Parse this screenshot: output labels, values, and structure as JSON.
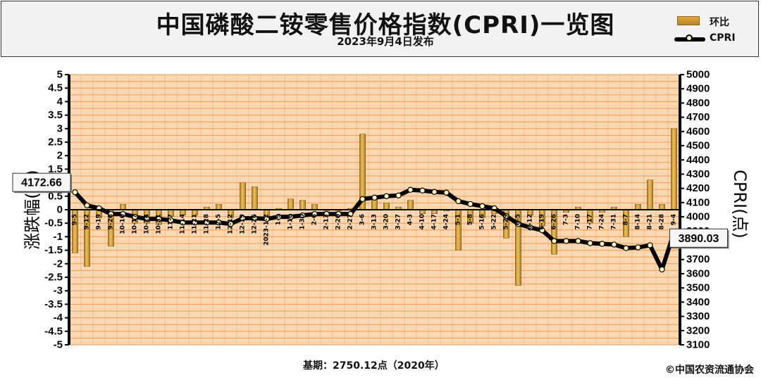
{
  "header": {
    "title": "中国磷酸二铵零售价格指数(CPRI)一览图",
    "subtitle": "2023年9月4日发布"
  },
  "legend": {
    "bar_label": "环比",
    "line_label": "CPRI"
  },
  "footer": {
    "base_note": "基期：2750.12点（2020年）",
    "copyright": "©中国农资流通协会"
  },
  "colors": {
    "plot_bg": "#fbd8b4",
    "gridline": "#f39a4e",
    "bar": "#d9a43a",
    "line": "#000000",
    "marker": "#fff6c0"
  },
  "chart_data": {
    "type": "bar",
    "x": [
      "9-5",
      "9-12",
      "9-19",
      "9-26",
      "10-10",
      "10-17",
      "10-24",
      "10-31",
      "11-7",
      "11-14",
      "11-21",
      "11-28",
      "12-5",
      "12-12",
      "12-19",
      "12-26",
      "2023-1-2",
      "1-9",
      "1-16",
      "1-30",
      "2-6",
      "2-13",
      "2-20",
      "2-27",
      "3-6",
      "3-13",
      "3-20",
      "3-27",
      "4-3",
      "4-10",
      "4-17",
      "4-24",
      "5-1",
      "5-8",
      "5-16",
      "5-22",
      "5-29",
      "6-5",
      "6-12",
      "6-19",
      "6-26",
      "7-3",
      "7-10",
      "7-17",
      "7-24",
      "7-31",
      "8-7",
      "8-14",
      "8-21",
      "8-28",
      "9-4"
    ],
    "series": [
      {
        "name": "环比",
        "type": "bar",
        "axis": "left",
        "values": [
          -1.6,
          -2.1,
          -0.3,
          -1.35,
          0.2,
          -0.5,
          -0.5,
          -0.55,
          -0.25,
          -0.2,
          -0.2,
          0.1,
          0.2,
          -0.3,
          1.0,
          0.85,
          -0.3,
          0.05,
          0.4,
          0.35,
          0.2,
          -0.05,
          -0.05,
          0.05,
          2.8,
          0.4,
          0.25,
          0.1,
          0.35,
          -0.15,
          -0.15,
          -0.05,
          -1.5,
          -0.5,
          -0.3,
          -0.15,
          -1.05,
          -2.8,
          -0.2,
          -0.6,
          -1.65,
          -0.1,
          0.1,
          -0.5,
          -0.1,
          0.1,
          -1.0,
          0.2,
          1.1,
          0.2,
          3.0
        ]
      },
      {
        "name": "CPRI",
        "type": "line",
        "axis": "right",
        "values": [
          4172.66,
          4080,
          4060,
          4020,
          4020,
          4000,
          3985,
          3985,
          3975,
          3960,
          3960,
          3960,
          3960,
          3950,
          3990,
          3990,
          3985,
          4000,
          4000,
          4010,
          4020,
          4020,
          4020,
          4020,
          4125,
          4135,
          4145,
          4150,
          4190,
          4185,
          4175,
          4170,
          4110,
          4090,
          4075,
          4060,
          4005,
          3950,
          3925,
          3905,
          3830,
          3830,
          3830,
          3815,
          3810,
          3805,
          3780,
          3785,
          3800,
          3630,
          3890.03
        ]
      }
    ],
    "y_left": {
      "label": "涨跌幅(%)",
      "min": -5,
      "max": 5,
      "step": 0.5
    },
    "y_right": {
      "label": "CPRI(点)",
      "min": 3100,
      "max": 5000,
      "step": 100
    },
    "annotations": [
      {
        "text": "4172.66",
        "index": 0,
        "series": "CPRI"
      },
      {
        "text": "3890.03",
        "index": 50,
        "series": "CPRI"
      }
    ],
    "grid": true,
    "legend": "top-right"
  }
}
